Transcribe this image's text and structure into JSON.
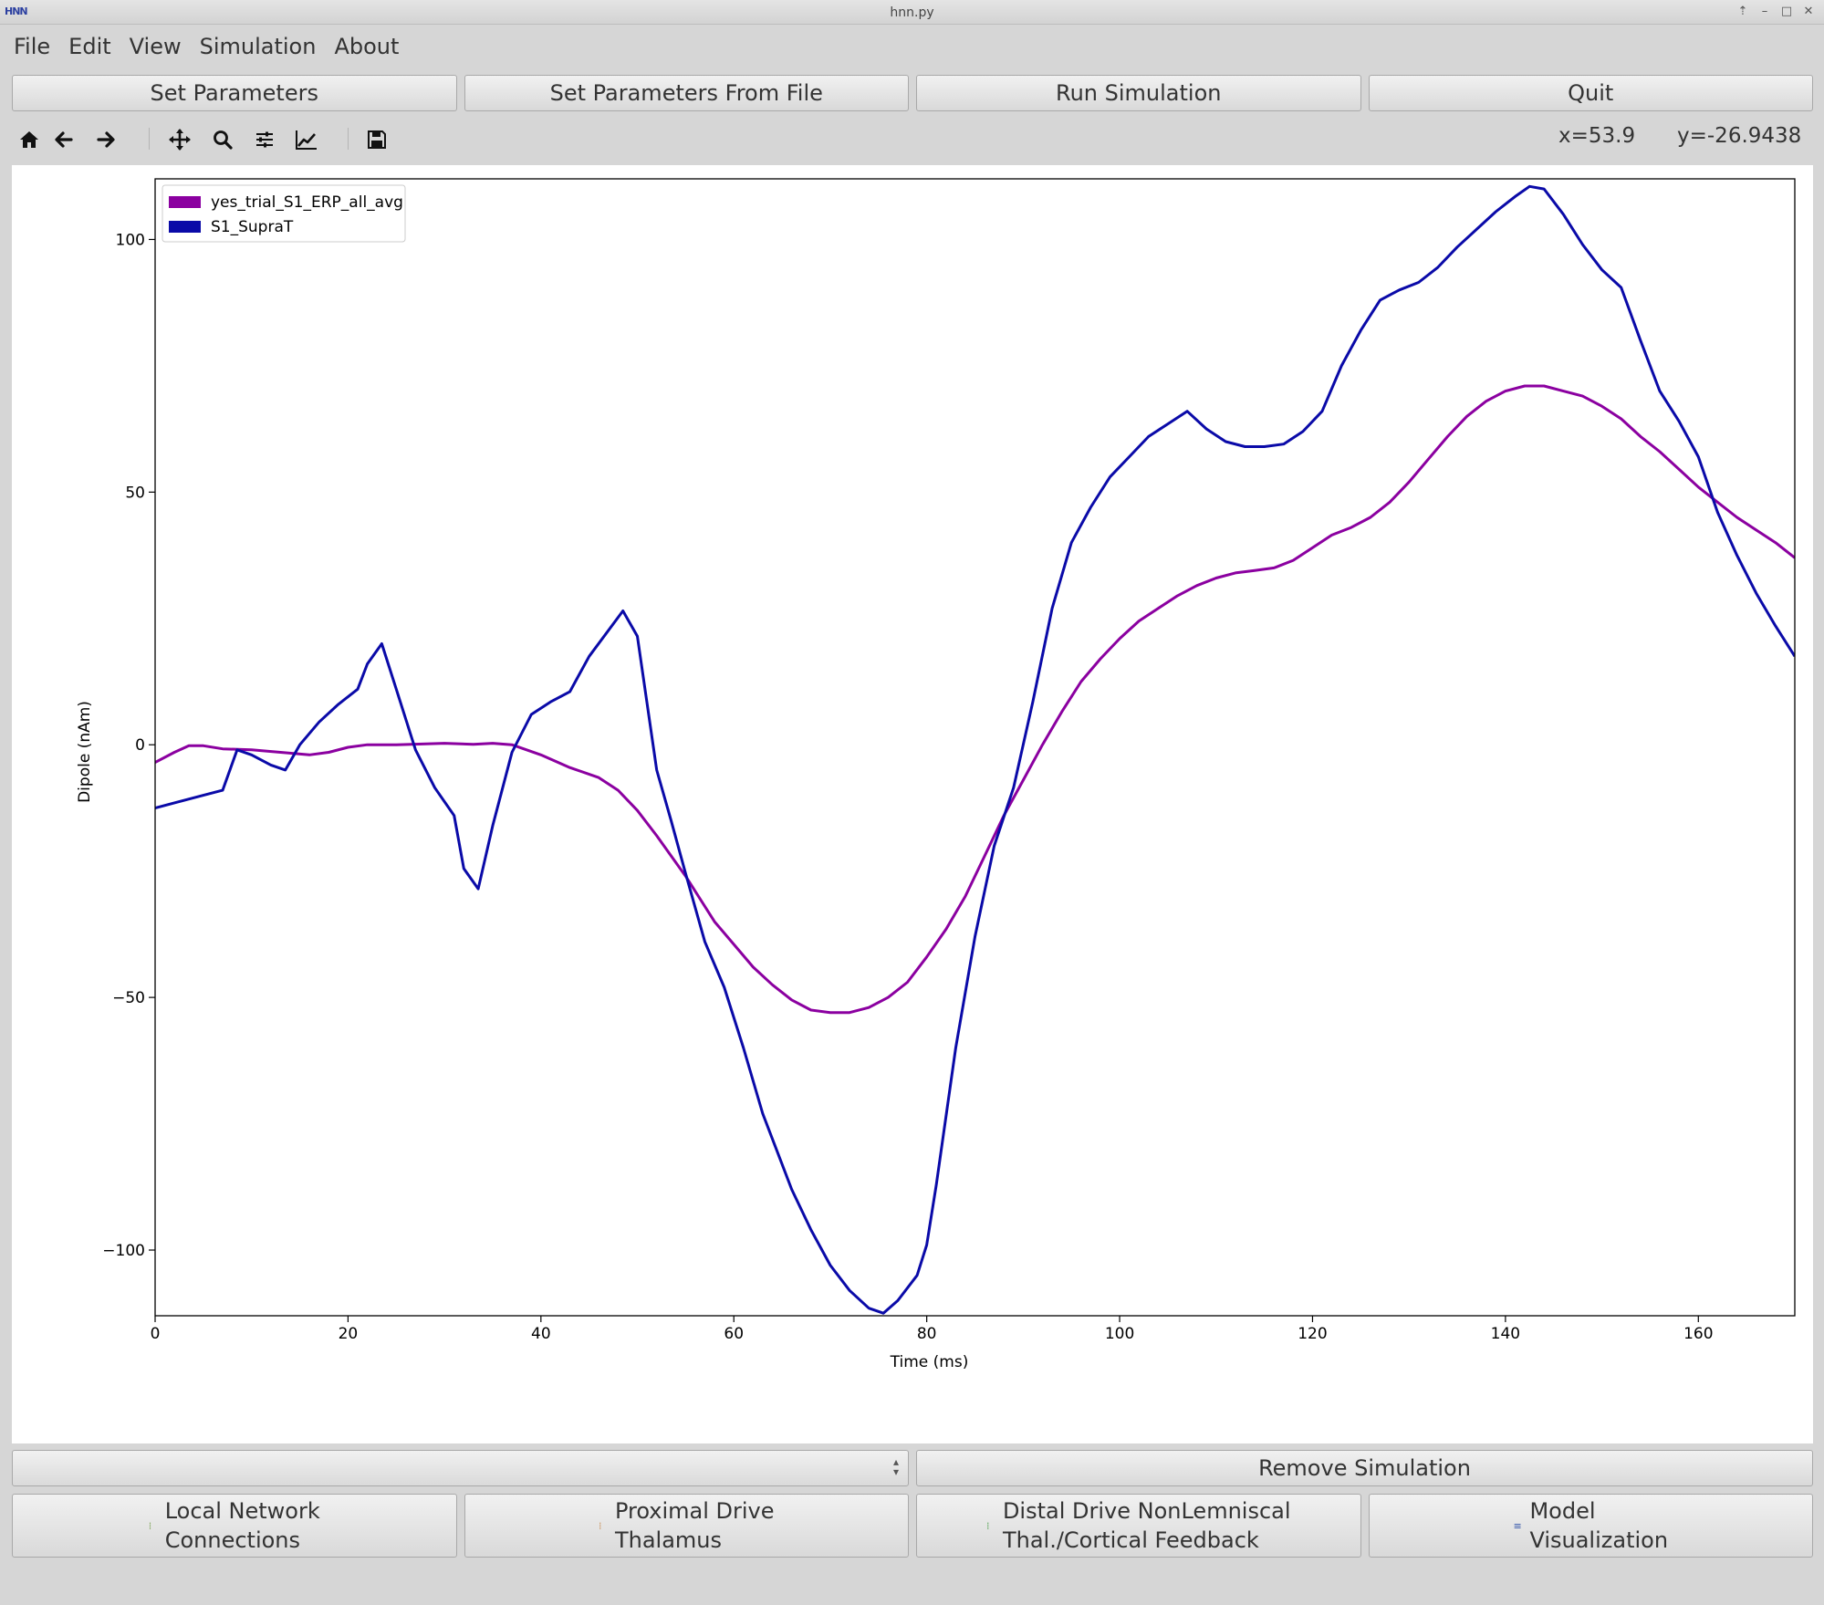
{
  "window": {
    "title": "hnn.py",
    "logo": "HNN"
  },
  "menu": [
    "File",
    "Edit",
    "View",
    "Simulation",
    "About"
  ],
  "buttons": [
    "Set Parameters",
    "Set Parameters From File",
    "Run Simulation",
    "Quit"
  ],
  "toolbar": {
    "icons": [
      "home-icon",
      "back-arrow-icon",
      "forward-arrow-icon",
      "pan-icon",
      "zoom-icon",
      "configure-subplots-icon",
      "edit-axes-icon",
      "save-icon"
    ],
    "coord_x": "x=53.9",
    "coord_y": "y=-26.9438"
  },
  "chart_data": {
    "type": "line",
    "xlabel": "Time (ms)",
    "ylabel": "Dipole (nAm)",
    "xlim": [
      0,
      170
    ],
    "ylim": [
      -113,
      112
    ],
    "xticks": [
      0,
      20,
      40,
      60,
      80,
      100,
      120,
      140,
      160
    ],
    "yticks": [
      -100,
      -50,
      0,
      50,
      100
    ],
    "grid": false,
    "legend": "top-left",
    "series": [
      {
        "name": "yes_trial_S1_ERP_all_avg",
        "color": "#8b00a0",
        "x": [
          0,
          2,
          3.5,
          5,
          7,
          10,
          13,
          16,
          18,
          20,
          22,
          25,
          30,
          33,
          35,
          37,
          40,
          43,
          46,
          48,
          50,
          52,
          55,
          58,
          62,
          64,
          66,
          68,
          70,
          72,
          74,
          76,
          78,
          80,
          82,
          84,
          86,
          88,
          90,
          92,
          94,
          96,
          98,
          100,
          102,
          104,
          106,
          108,
          110,
          112,
          114,
          116,
          118,
          120,
          122,
          124,
          126,
          128,
          130,
          132,
          134,
          136,
          138,
          140,
          142,
          144,
          146,
          148,
          150,
          152,
          154,
          156,
          158,
          160,
          162,
          164,
          166,
          168,
          170
        ],
        "values": [
          -3.5,
          -1.5,
          -0.2,
          -0.2,
          -0.8,
          -1,
          -1.5,
          -2,
          -1.5,
          -0.5,
          0,
          0,
          0.3,
          0.1,
          0.3,
          0,
          -2,
          -4.5,
          -6.5,
          -9,
          -13,
          -18,
          -26,
          -35,
          -44,
          -47.5,
          -50.5,
          -52.5,
          -53,
          -53,
          -52,
          -50,
          -47,
          -42,
          -36.5,
          -30,
          -22,
          -14,
          -7,
          0,
          6.5,
          12.5,
          17,
          21,
          24.5,
          27,
          29.5,
          31.5,
          33,
          34,
          34.5,
          35,
          36.5,
          39,
          41.5,
          43,
          45,
          48,
          52,
          56.5,
          61,
          65,
          68,
          70,
          71,
          71,
          70,
          69,
          67,
          64.5,
          61,
          58,
          54.5,
          51,
          48,
          45,
          42.5,
          40,
          37
        ],
        "raw_note": ""
      },
      {
        "name": "S1_SupraT",
        "color": "#0a0aa8",
        "x": [
          0,
          2,
          5,
          7,
          8.5,
          10,
          12,
          13.5,
          15,
          17,
          19,
          21,
          22,
          23.5,
          25,
          27,
          29,
          31,
          32,
          33.5,
          35,
          37,
          39,
          41,
          43,
          45,
          48.5,
          50,
          52,
          53.5,
          55,
          57,
          59,
          61,
          63,
          66,
          68,
          70,
          72,
          74,
          75.5,
          77,
          79,
          80,
          81,
          83,
          85,
          87,
          89,
          91,
          93,
          95,
          97,
          99,
          101,
          103,
          105,
          107,
          109,
          111,
          113,
          115,
          117,
          119,
          121,
          123,
          125,
          127,
          129,
          131,
          133,
          135,
          137,
          139,
          141,
          142.5,
          144,
          146,
          148,
          150,
          152,
          154,
          156,
          158,
          160,
          162,
          164,
          166,
          168,
          170
        ],
        "values": [
          -12.5,
          -11.5,
          -10,
          -9,
          -1,
          -2,
          -4,
          -5,
          0,
          4.5,
          8,
          11,
          16,
          20,
          11,
          -1,
          -8.5,
          -14,
          -24.5,
          -28.5,
          -16,
          -1.5,
          6,
          8.5,
          10.5,
          17.5,
          26.5,
          21.5,
          -5,
          -15,
          -25.5,
          -39,
          -48,
          -60,
          -73,
          -88,
          -96,
          -103,
          -108,
          -111.5,
          -112.5,
          -110,
          -105,
          -99,
          -87,
          -60,
          -38,
          -20,
          -8.5,
          8.5,
          27,
          40,
          47,
          53,
          57,
          61,
          63.5,
          66,
          62.5,
          60,
          59,
          59,
          59.5,
          62,
          66,
          75,
          82,
          88,
          90,
          91.5,
          94.5,
          98.5,
          102,
          105.5,
          108.5,
          110.5,
          110,
          105,
          99,
          94,
          90.5,
          80,
          70,
          64,
          57,
          46,
          37.5,
          30,
          23.5,
          17.5
        ],
        "raw_note": ""
      }
    ]
  },
  "sim_selector": {
    "value": ""
  },
  "remove_button": "Remove Simulation",
  "dialog_buttons": [
    {
      "label": "Local Network\nConnections",
      "icon": "network-icon"
    },
    {
      "label": "Proximal Drive\nThalamus",
      "icon": "proximal-icon"
    },
    {
      "label": "Distal Drive NonLemniscal\nThal./Cortical Feedback",
      "icon": "distal-icon"
    },
    {
      "label": "Model\nVisualization",
      "icon": "model-icon"
    }
  ]
}
